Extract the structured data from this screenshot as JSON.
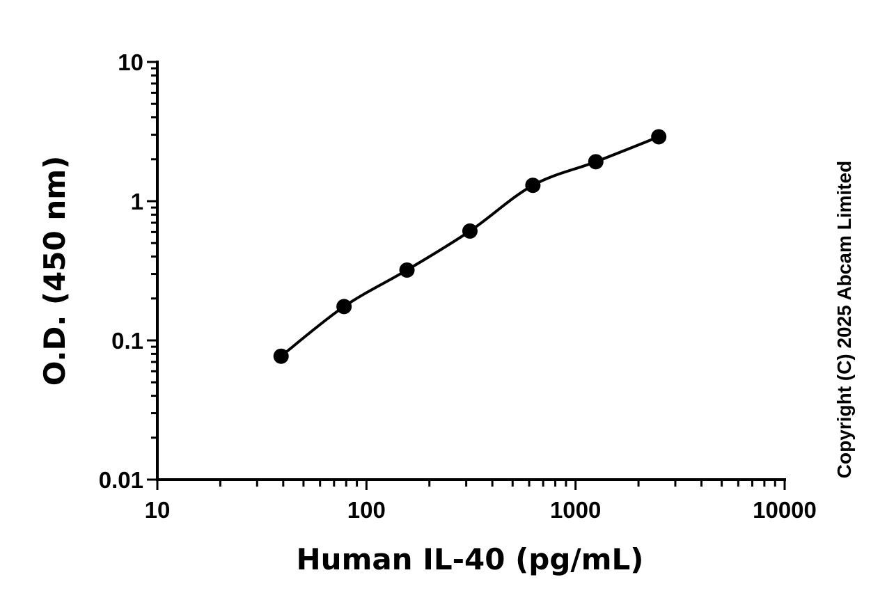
{
  "chart_data": {
    "type": "scatter",
    "xlabel": "Human IL-40 (pg/mL)",
    "ylabel": "O.D. (450 nm)",
    "xscale": "log",
    "yscale": "log",
    "xlim": [
      10,
      10000
    ],
    "ylim": [
      0.01,
      10
    ],
    "x_ticks": [
      10,
      100,
      1000,
      10000
    ],
    "x_tick_labels": [
      "10",
      "100",
      "1000",
      "10000"
    ],
    "y_ticks": [
      0.01,
      0.1,
      1,
      10
    ],
    "y_tick_labels": [
      "0.01",
      "0.1",
      "1",
      "10"
    ],
    "grid": false,
    "legend": "none",
    "series": [
      {
        "points": [
          {
            "x": 39.06,
            "y": 0.077
          },
          {
            "x": 78.13,
            "y": 0.175
          },
          {
            "x": 156.25,
            "y": 0.32
          },
          {
            "x": 312.5,
            "y": 0.61
          },
          {
            "x": 625,
            "y": 1.3
          },
          {
            "x": 1250,
            "y": 1.92
          },
          {
            "x": 2500,
            "y": 2.9
          }
        ],
        "fit": "smooth curve",
        "color": "#000000"
      }
    ],
    "annotation": "Copyright (C) 2025 Abcam Limited"
  }
}
